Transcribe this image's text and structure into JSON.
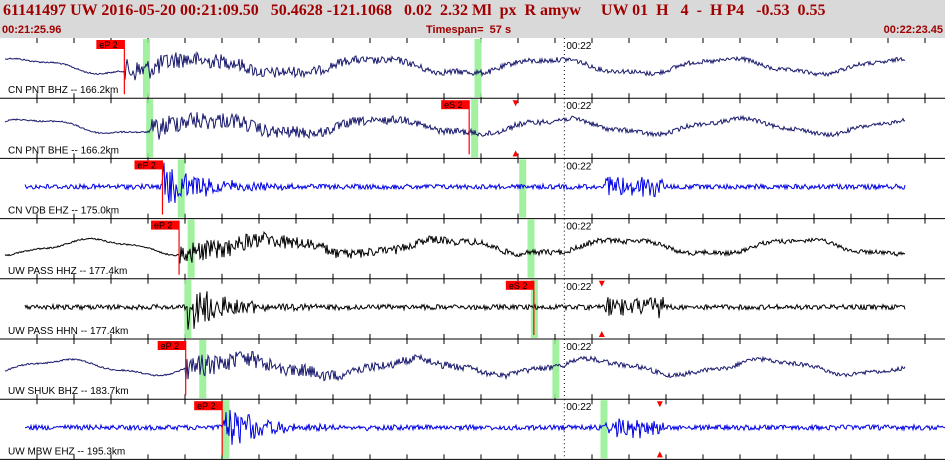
{
  "header": {
    "event_line": "61141497 UW 2016-05-20 00:21:09.50   50.4628 -121.1068   0.02  2.32 Ml  px  R amyw     UW 01  H   4  -  H P4   -0.53  0.55",
    "start_time": "00:21:25.96",
    "timespan": "Timespan=  57 s",
    "end_time": "00:22:23.45"
  },
  "minute_label": "00:22",
  "colors": {
    "header_bg": "#d9d9d9",
    "header_text": "#a00000",
    "pick_box": "#ff0000",
    "phase_window": "#90ee90",
    "trace_navy": "#1a1a6e",
    "trace_blue": "#0000e6",
    "trace_black": "#000000"
  },
  "channels": [
    {
      "label": "CN PNT BHZ -- 166.2km",
      "color": "#1a1a6e",
      "style": "wavy",
      "picks": [
        {
          "text": "eP 2",
          "x_s": 7.5
        }
      ],
      "windows_s": [
        8.8,
        28.8
      ],
      "triangles_s": []
    },
    {
      "label": "CN PNT BHE -- 166.2km",
      "color": "#1a1a6e",
      "style": "wavy",
      "picks": [
        {
          "text": "eS 2",
          "x_s": 28.3
        }
      ],
      "windows_s": [
        9.0,
        28.6
      ],
      "triangles_s": [
        31.1
      ]
    },
    {
      "label": "CN VDB EHZ -- 175.0km",
      "color": "#0000e6",
      "style": "noise",
      "picks": [
        {
          "text": "eP 2",
          "x_s": 9.8
        }
      ],
      "windows_s": [
        10.9,
        31.5
      ],
      "triangles_s": []
    },
    {
      "label": "UW PASS HHZ -- 177.4km",
      "color": "#000000",
      "style": "wavy",
      "picks": [
        {
          "text": "eP 2",
          "x_s": 10.8
        }
      ],
      "windows_s": [
        11.5,
        32.0
      ],
      "triangles_s": []
    },
    {
      "label": "UW PASS HHN -- 177.4km",
      "color": "#000000",
      "style": "noise",
      "picks": [
        {
          "text": "eS 2",
          "x_s": 32.2
        }
      ],
      "windows_s": [
        11.3,
        32.2
      ],
      "triangles_s": [
        36.3
      ]
    },
    {
      "label": "UW SHUK BHZ -- 183.7km",
      "color": "#1a1a6e",
      "style": "wavy",
      "picks": [
        {
          "text": "eP 2",
          "x_s": 11.2
        }
      ],
      "windows_s": [
        12.2,
        33.5
      ],
      "triangles_s": []
    },
    {
      "label": "UW MBW EHZ -- 195.3km",
      "color": "#0000e6",
      "style": "noise",
      "picks": [
        {
          "text": "eP 2",
          "x_s": 13.4
        }
      ],
      "windows_s": [
        13.6,
        36.4
      ],
      "triangles_s": [
        39.8
      ]
    }
  ]
}
